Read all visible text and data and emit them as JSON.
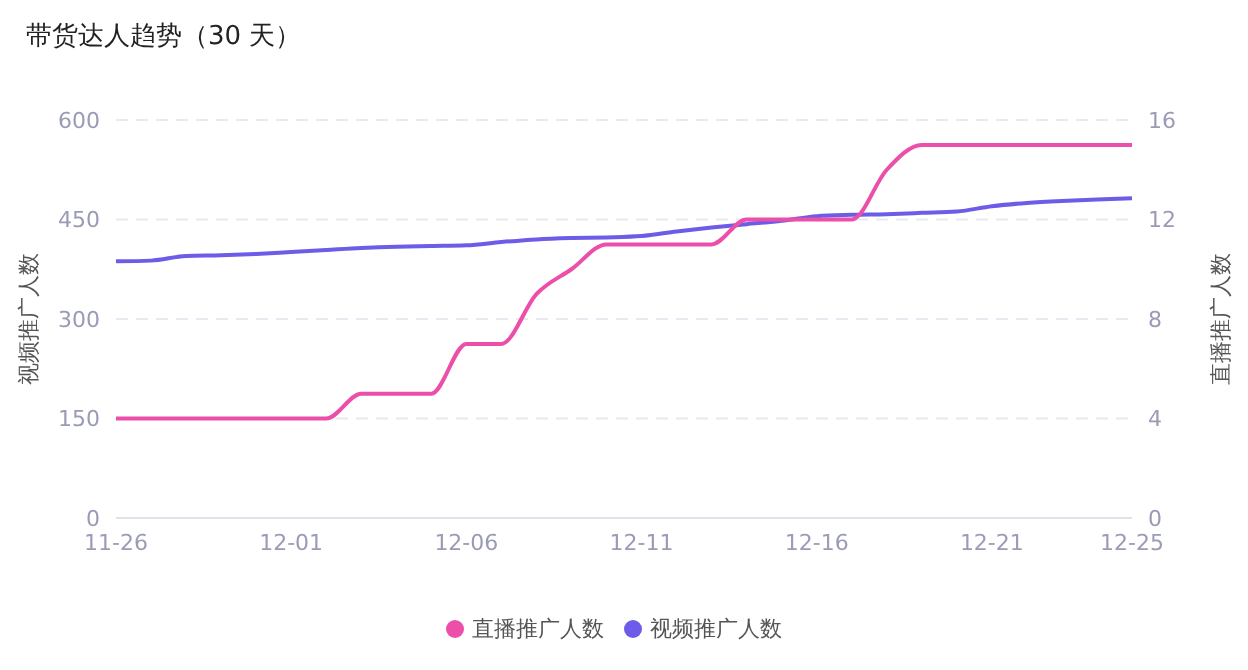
{
  "chart_data": {
    "type": "line",
    "title": "带货达人趋势（30 天）",
    "ylabel": "视频推广人数",
    "y2label": "直播推广人数",
    "categories": [
      "11-26",
      null,
      null,
      null,
      null,
      "12-01",
      null,
      null,
      null,
      null,
      "12-06",
      null,
      null,
      null,
      null,
      "12-11",
      null,
      null,
      null,
      null,
      "12-16",
      null,
      null,
      null,
      null,
      "12-21",
      null,
      null,
      null,
      "12-25"
    ],
    "series": [
      {
        "name": "视频推广人数",
        "color": "#6c5ce7",
        "values": [
          387,
          388,
          395,
          396,
          398,
          401,
          404,
          407,
          409,
          410,
          411,
          416,
          420,
          422,
          423,
          425,
          432,
          438,
          443,
          448,
          455,
          457,
          458,
          460,
          462,
          470,
          475,
          478,
          480,
          482
        ]
      },
      {
        "name": "直播推广人数",
        "color": "#ec4fa9",
        "axis": "y2",
        "values": [
          4,
          4,
          4,
          4,
          4,
          4,
          4,
          5,
          5,
          5,
          7,
          7,
          9,
          10,
          11,
          11,
          11,
          11,
          12,
          12,
          12,
          12,
          14,
          15,
          15,
          15,
          15,
          15,
          15,
          15
        ]
      }
    ],
    "ylim": [
      0,
      600
    ],
    "yticks": [
      0,
      150,
      300,
      450,
      600
    ],
    "y2lim": [
      0,
      16
    ],
    "y2ticks": [
      0,
      4,
      8,
      12,
      16
    ],
    "grid": "y",
    "legend": "bottom",
    "marker": "none",
    "line_style": "solid"
  }
}
